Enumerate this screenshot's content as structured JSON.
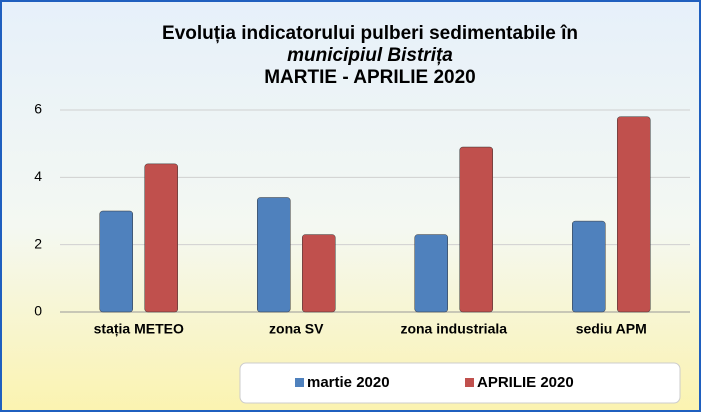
{
  "chart_data": {
    "type": "bar",
    "title": [
      "Evoluția indicatorului pulberi sedimentabile în",
      "municipiul Bistrița",
      "MARTIE - APRILIE 2020"
    ],
    "categories": [
      "stația METEO",
      "zona SV",
      "zona industriala",
      "sediu APM"
    ],
    "series": [
      {
        "name": "martie 2020",
        "color": "#4f81bd",
        "values": [
          3.0,
          3.4,
          2.3,
          2.7
        ]
      },
      {
        "name": "APRILIE 2020",
        "color": "#c0504d",
        "values": [
          4.4,
          2.3,
          4.9,
          5.8
        ]
      }
    ],
    "ylim": [
      0,
      6
    ],
    "yticks": [
      0,
      2,
      4,
      6
    ],
    "grid": true,
    "legend": "bottom"
  }
}
